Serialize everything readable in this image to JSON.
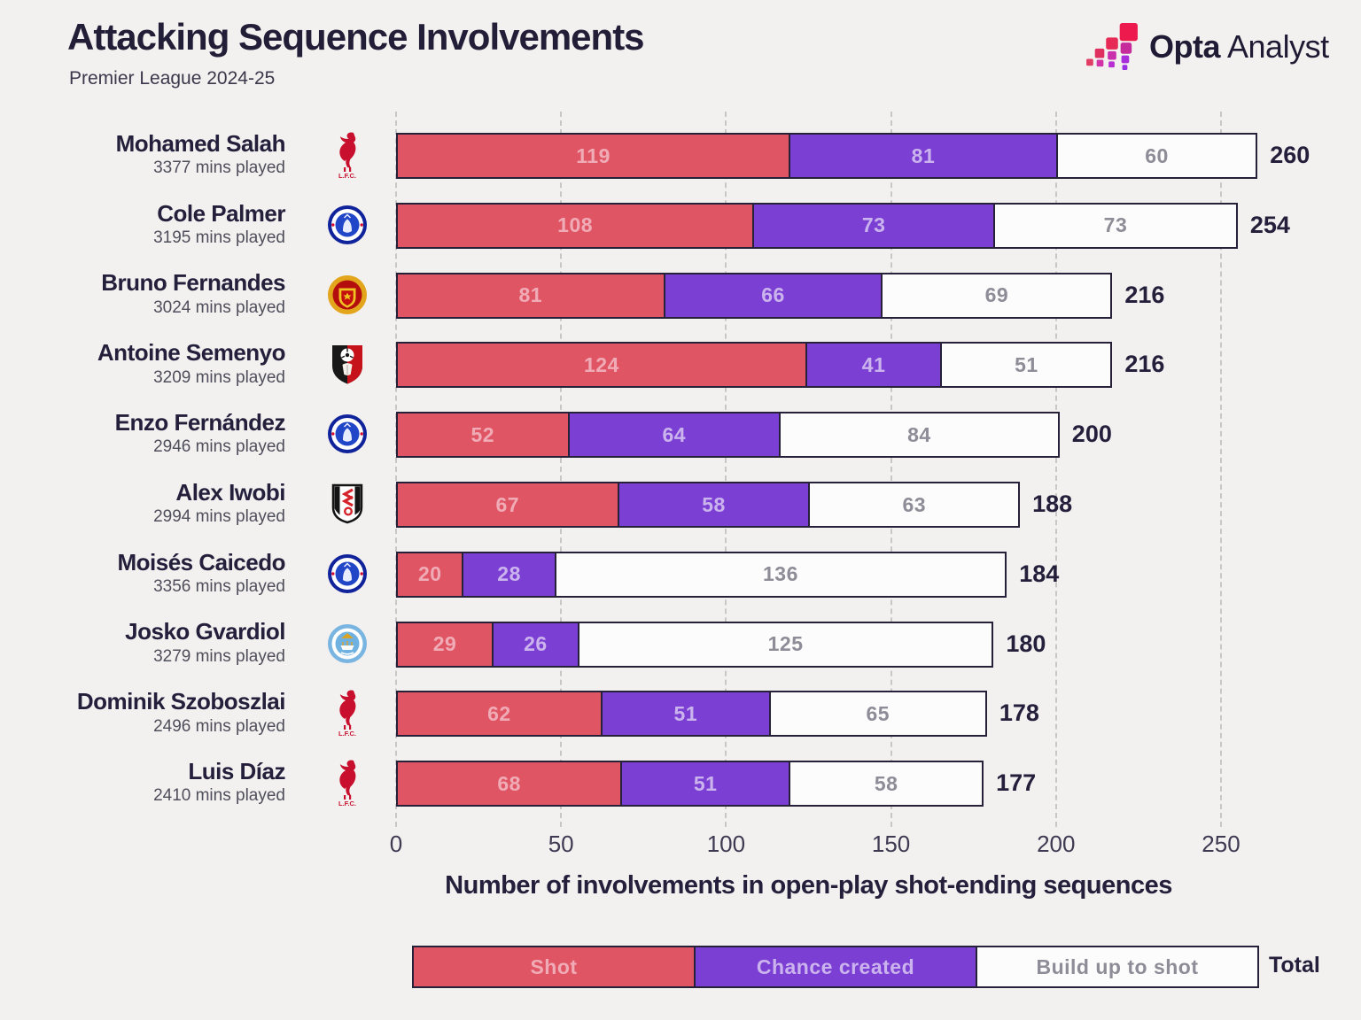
{
  "header": {
    "title": "Attacking Sequence Involvements",
    "subtitle": "Premier League 2024-25",
    "logo": {
      "bold": "Opta",
      "regular": "Analyst"
    }
  },
  "chart_data": {
    "type": "bar",
    "stacked": true,
    "orientation": "horizontal",
    "title": "Attacking Sequence Involvements",
    "subtitle": "Premier League 2024-25",
    "xlabel": "Number of involvements in open-play shot-ending sequences",
    "xlim": [
      0,
      250
    ],
    "x_ticks": [
      0,
      50,
      100,
      150,
      200,
      250
    ],
    "grid": "dashed-vertical",
    "legend_position": "bottom",
    "series_names": [
      "Shot",
      "Chance created",
      "Build up to shot"
    ],
    "colors": {
      "shot": "#e05564",
      "chance_created": "#7c3fd4",
      "build_up_to_shot": "#fdfcfc",
      "bar_border": "#262038",
      "background": "#f2f1ef",
      "text_dark": "#24203c"
    },
    "legend": {
      "items": [
        {
          "label": "Shot",
          "key": "shot"
        },
        {
          "label": "Chance created",
          "key": "chance_created"
        },
        {
          "label": "Build up to shot",
          "key": "build_up_to_shot"
        }
      ],
      "total_label": "Total"
    },
    "players": [
      {
        "name": "Mohamed Salah",
        "mins_played": "3377 mins played",
        "club": "liverpool",
        "shot": 119,
        "chance_created": 81,
        "build_up_to_shot": 60,
        "total": 260
      },
      {
        "name": "Cole Palmer",
        "mins_played": "3195 mins played",
        "club": "chelsea",
        "shot": 108,
        "chance_created": 73,
        "build_up_to_shot": 73,
        "total": 254
      },
      {
        "name": "Bruno Fernandes",
        "mins_played": "3024 mins played",
        "club": "man-utd",
        "shot": 81,
        "chance_created": 66,
        "build_up_to_shot": 69,
        "total": 216
      },
      {
        "name": "Antoine Semenyo",
        "mins_played": "3209 mins played",
        "club": "bournemouth",
        "shot": 124,
        "chance_created": 41,
        "build_up_to_shot": 51,
        "total": 216
      },
      {
        "name": "Enzo Fernández",
        "mins_played": "2946 mins played",
        "club": "chelsea",
        "shot": 52,
        "chance_created": 64,
        "build_up_to_shot": 84,
        "total": 200
      },
      {
        "name": "Alex Iwobi",
        "mins_played": "2994 mins played",
        "club": "fulham",
        "shot": 67,
        "chance_created": 58,
        "build_up_to_shot": 63,
        "total": 188
      },
      {
        "name": "Moisés Caicedo",
        "mins_played": "3356 mins played",
        "club": "chelsea",
        "shot": 20,
        "chance_created": 28,
        "build_up_to_shot": 136,
        "total": 184
      },
      {
        "name": "Josko Gvardiol",
        "mins_played": "3279 mins played",
        "club": "man-city",
        "shot": 29,
        "chance_created": 26,
        "build_up_to_shot": 125,
        "total": 180
      },
      {
        "name": "Dominik Szoboszlai",
        "mins_played": "2496 mins played",
        "club": "liverpool",
        "shot": 62,
        "chance_created": 51,
        "build_up_to_shot": 65,
        "total": 178
      },
      {
        "name": "Luis Díaz",
        "mins_played": "2410 mins played",
        "club": "liverpool",
        "shot": 68,
        "chance_created": 51,
        "build_up_to_shot": 58,
        "total": 177
      }
    ]
  }
}
